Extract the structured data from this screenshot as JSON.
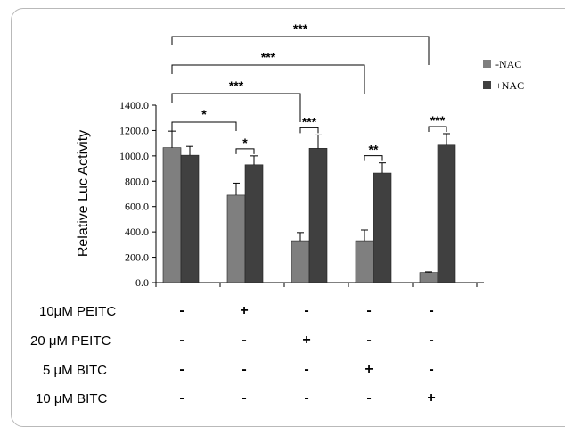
{
  "chart_data": {
    "type": "bar",
    "ylabel": "Relative Luc Activity",
    "ylim": [
      0,
      1400
    ],
    "yticks": [
      "0.0",
      "200.0",
      "400.0",
      "600.0",
      "800.0",
      "1000.0",
      "1200.0",
      "1400.0"
    ],
    "series": [
      {
        "name": "-NAC",
        "color": "#7f7f7f",
        "values": [
          1065,
          690,
          330,
          330,
          80
        ],
        "errors": [
          130,
          95,
          65,
          85,
          5
        ]
      },
      {
        "name": "+NAC",
        "color": "#404040",
        "values": [
          1005,
          930,
          1060,
          865,
          1085
        ],
        "errors": [
          70,
          70,
          105,
          80,
          90
        ]
      }
    ],
    "legend_position": "top-right",
    "significance_within_group": [
      "*",
      "***",
      "**",
      "***"
    ],
    "significance_vs_control": [
      "*",
      "***",
      "***",
      "***"
    ],
    "conditions": [
      {
        "label": "10μM PEITC",
        "marks": [
          "-",
          "+",
          "-",
          "-",
          "-"
        ]
      },
      {
        "label": "20 μM PEITC",
        "marks": [
          "-",
          "-",
          "+",
          "-",
          "-"
        ]
      },
      {
        "label": "5 μM BITC",
        "marks": [
          "-",
          "-",
          "-",
          "+",
          "-"
        ]
      },
      {
        "label": "10 μM BITC",
        "marks": [
          "-",
          "-",
          "-",
          "-",
          "+"
        ]
      }
    ]
  }
}
